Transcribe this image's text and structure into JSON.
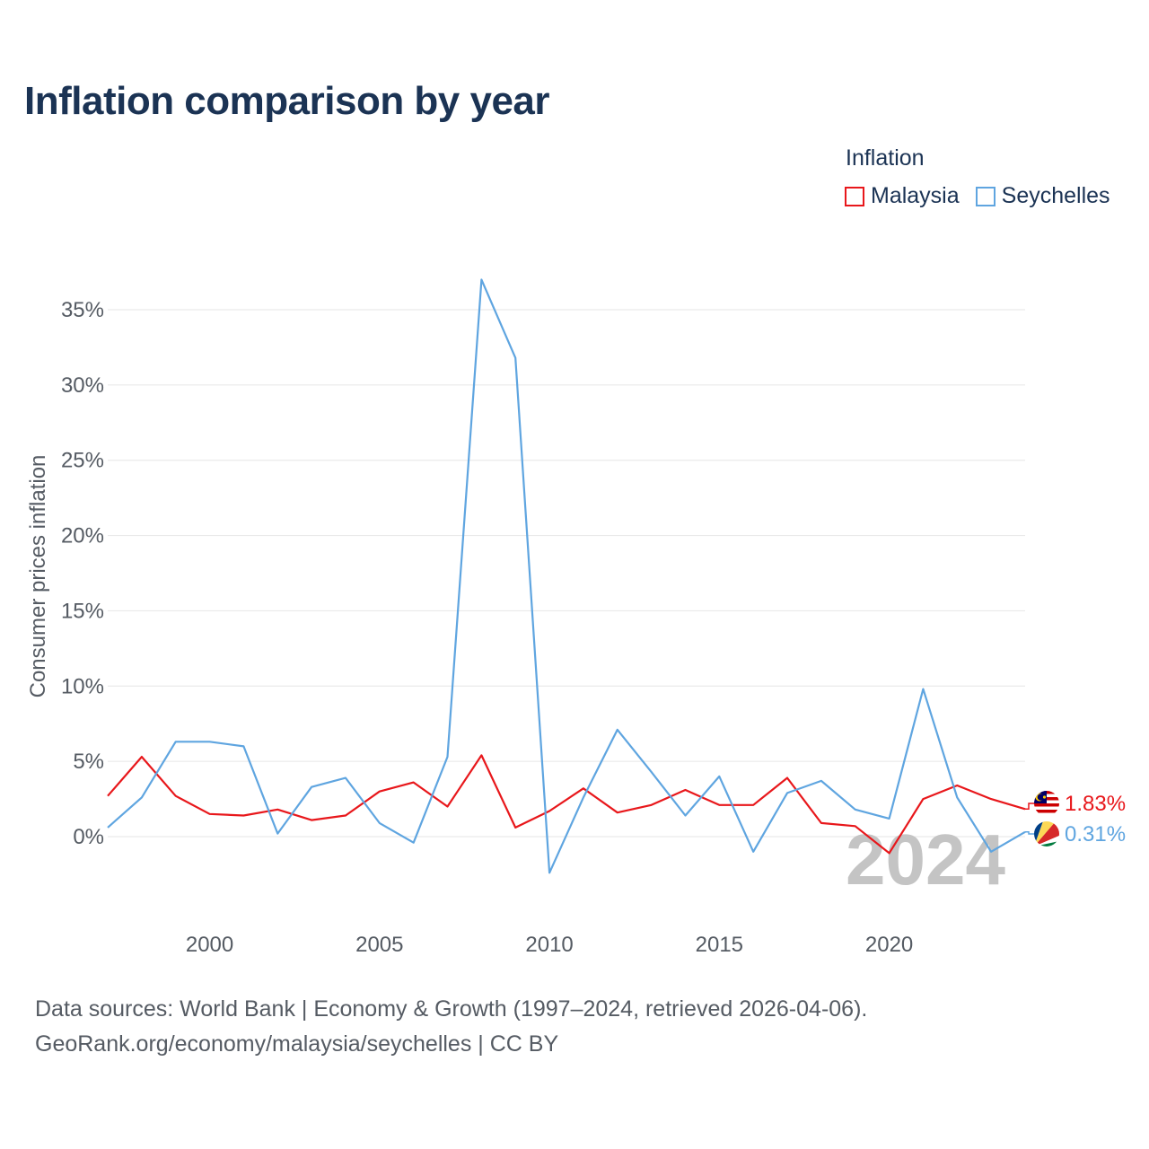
{
  "title": "Inflation comparison by year",
  "legend": {
    "title": "Inflation",
    "items": [
      {
        "label": "Malaysia",
        "color": "#e8171b"
      },
      {
        "label": "Seychelles",
        "color": "#5fa5e0"
      }
    ]
  },
  "source": {
    "line1": "Data sources: World Bank | Economy & Growth (1997–2024, retrieved 2026-04-06).",
    "line2": "GeoRank.org/economy/malaysia/seychelles | CC BY"
  },
  "watermark_year": "2024",
  "chart_data": {
    "type": "line",
    "title": "Inflation comparison by year",
    "xlabel": "",
    "ylabel": "Consumer prices inflation",
    "xlim": [
      1997,
      2024
    ],
    "ylim": [
      -4.5,
      37.5
    ],
    "x_ticks": [
      2000,
      2005,
      2010,
      2015,
      2020
    ],
    "x_tick_labels": [
      "2000",
      "2005",
      "2010",
      "2015",
      "2020"
    ],
    "y_ticks": [
      0,
      5,
      10,
      15,
      20,
      25,
      30,
      35
    ],
    "y_tick_labels": [
      "0%",
      "5%",
      "10%",
      "15%",
      "20%",
      "25%",
      "30%",
      "35%"
    ],
    "grid": true,
    "legend_position": "top-right",
    "x": [
      1997,
      1998,
      1999,
      2000,
      2001,
      2002,
      2003,
      2004,
      2005,
      2006,
      2007,
      2008,
      2009,
      2010,
      2011,
      2012,
      2013,
      2014,
      2015,
      2016,
      2017,
      2018,
      2019,
      2020,
      2021,
      2022,
      2023,
      2024
    ],
    "series": [
      {
        "name": "Malaysia",
        "color": "#e8171b",
        "end_label": "1.83%",
        "flag": "malaysia-flag-icon",
        "values": [
          2.7,
          5.3,
          2.7,
          1.5,
          1.4,
          1.8,
          1.1,
          1.4,
          3.0,
          3.6,
          2.0,
          5.4,
          0.6,
          1.7,
          3.2,
          1.6,
          2.1,
          3.1,
          2.1,
          2.1,
          3.9,
          0.9,
          0.7,
          -1.1,
          2.5,
          3.4,
          2.5,
          1.83
        ]
      },
      {
        "name": "Seychelles",
        "color": "#5fa5e0",
        "end_label": "0.31%",
        "flag": "seychelles-flag-icon",
        "values": [
          0.6,
          2.6,
          6.3,
          6.3,
          6.0,
          0.2,
          3.3,
          3.9,
          0.9,
          -0.4,
          5.3,
          37.0,
          31.8,
          -2.4,
          2.6,
          7.1,
          4.3,
          1.4,
          4.0,
          -1.0,
          2.9,
          3.7,
          1.8,
          1.2,
          9.8,
          2.6,
          -1.0,
          0.31
        ]
      }
    ]
  }
}
